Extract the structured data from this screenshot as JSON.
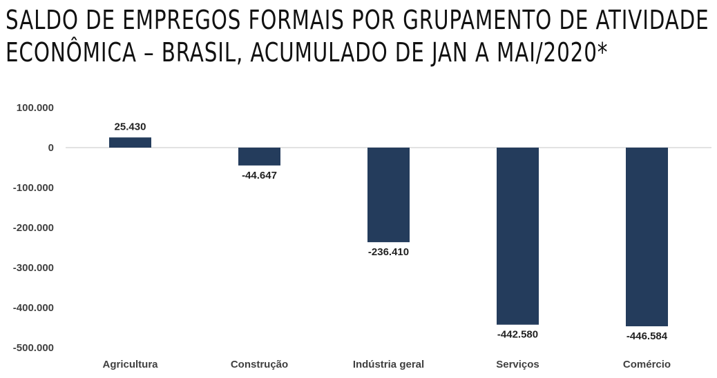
{
  "title": {
    "line1": "SALDO DE EMPREGOS FORMAIS POR GRUPAMENTO DE ATIVIDADE",
    "line2": "ECONÔMICA – BRASIL, ACUMULADO DE JAN A MAI/2020*"
  },
  "chart_data": {
    "type": "bar",
    "categories": [
      "Agricultura",
      "Construção",
      "Indústria geral",
      "Serviços",
      "Comércio"
    ],
    "values": [
      25430,
      -44647,
      -236410,
      -442580,
      -446584
    ],
    "value_labels": [
      "25.430",
      "-44.647",
      "-236.410",
      "-442.580",
      "-446.584"
    ],
    "ylim": [
      -500000,
      100000
    ],
    "yticks": [
      100000,
      0,
      -100000,
      -200000,
      -300000,
      -400000,
      -500000
    ],
    "ytick_labels": [
      "100.000",
      "0",
      "-100.000",
      "-200.000",
      "-300.000",
      "-400.000",
      "-500.000"
    ],
    "bar_color": "#243c5c",
    "grid": false,
    "legend": "none"
  }
}
